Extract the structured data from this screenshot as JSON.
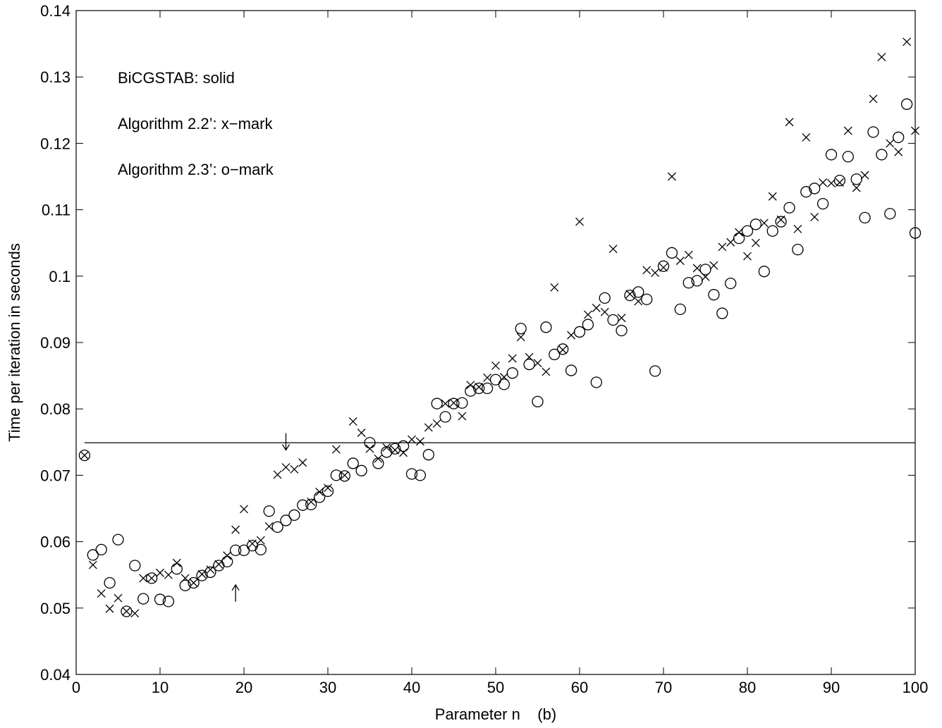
{
  "chart_data": {
    "type": "scatter",
    "title": "",
    "xlabel": "Parameter n    (b)",
    "ylabel": "Time per iteration in seconds",
    "xlim": [
      0,
      100
    ],
    "ylim": [
      0.04,
      0.14
    ],
    "xticks": [
      0,
      10,
      20,
      30,
      40,
      50,
      60,
      70,
      80,
      90,
      100
    ],
    "yticks": [
      0.04,
      0.05,
      0.06,
      0.07,
      0.08,
      0.09,
      0.1,
      0.11,
      0.12,
      0.13,
      0.14
    ],
    "xtick_labels": [
      "0",
      "10",
      "20",
      "30",
      "40",
      "50",
      "60",
      "70",
      "80",
      "90",
      "100"
    ],
    "ytick_labels": [
      "0.04",
      "0.05",
      "0.06",
      "0.07",
      "0.08",
      "0.09",
      "0.1",
      "0.11",
      "0.12",
      "0.13",
      "0.14"
    ],
    "grid": false,
    "annotations": [
      "BiCGSTAB: solid",
      "Algorithm 2.2’: x−mark",
      "Algorithm 2.3’: o−mark"
    ],
    "arrows": [
      {
        "x": 25,
        "y": 0.0738,
        "direction": "down"
      },
      {
        "x": 19,
        "y": 0.0535,
        "direction": "up"
      }
    ],
    "series": [
      {
        "name": "BiCGSTAB",
        "style": "solid",
        "x": [
          1,
          100
        ],
        "y": [
          0.0749,
          0.0749
        ]
      },
      {
        "name": "Algorithm 2.2’",
        "style": "x-mark",
        "x": [
          1,
          2,
          3,
          4,
          5,
          6,
          7,
          8,
          9,
          10,
          11,
          12,
          13,
          14,
          15,
          16,
          17,
          18,
          19,
          20,
          21,
          22,
          23,
          24,
          25,
          26,
          27,
          28,
          29,
          30,
          31,
          32,
          33,
          34,
          35,
          36,
          37,
          38,
          39,
          40,
          41,
          42,
          43,
          44,
          45,
          46,
          47,
          48,
          49,
          50,
          51,
          52,
          53,
          54,
          55,
          56,
          57,
          58,
          59,
          60,
          61,
          62,
          63,
          64,
          65,
          66,
          67,
          68,
          69,
          70,
          71,
          72,
          73,
          74,
          75,
          76,
          77,
          78,
          79,
          80,
          81,
          82,
          83,
          84,
          85,
          86,
          87,
          88,
          89,
          90,
          91,
          92,
          93,
          94,
          95,
          96,
          97,
          98,
          99,
          100
        ],
        "y": [
          0.073,
          0.0565,
          0.0522,
          0.0499,
          0.0515,
          0.0495,
          0.0492,
          0.0545,
          0.0545,
          0.0553,
          0.055,
          0.0568,
          0.0545,
          0.0538,
          0.0551,
          0.0558,
          0.0566,
          0.0579,
          0.0618,
          0.0649,
          0.0597,
          0.0602,
          0.0623,
          0.0701,
          0.0712,
          0.0709,
          0.0719,
          0.066,
          0.0675,
          0.0681,
          0.0739,
          0.07,
          0.0781,
          0.0764,
          0.074,
          0.0725,
          0.0742,
          0.0738,
          0.0734,
          0.0754,
          0.0751,
          0.0772,
          0.0778,
          0.0808,
          0.0809,
          0.0789,
          0.0836,
          0.0833,
          0.0847,
          0.0865,
          0.0848,
          0.0876,
          0.0908,
          0.0878,
          0.0869,
          0.0856,
          0.0983,
          0.0889,
          0.0911,
          0.1082,
          0.0942,
          0.0952,
          0.0946,
          0.1041,
          0.0937,
          0.0973,
          0.0962,
          0.1009,
          0.1005,
          0.1013,
          0.115,
          0.1023,
          0.1032,
          0.1012,
          0.0999,
          0.1016,
          0.1044,
          0.1051,
          0.1066,
          0.103,
          0.105,
          0.108,
          0.112,
          0.1085,
          0.1232,
          0.1071,
          0.1209,
          0.1089,
          0.1141,
          0.114,
          0.1141,
          0.1219,
          0.1133,
          0.1152,
          0.1267,
          0.133,
          0.12,
          0.1187,
          0.1353,
          0.1219
        ]
      },
      {
        "name": "Algorithm 2.3’",
        "style": "o-mark",
        "x": [
          1,
          2,
          3,
          4,
          5,
          6,
          7,
          8,
          9,
          10,
          11,
          12,
          13,
          14,
          15,
          16,
          17,
          18,
          19,
          20,
          21,
          22,
          23,
          24,
          25,
          26,
          27,
          28,
          29,
          30,
          31,
          32,
          33,
          34,
          35,
          36,
          37,
          38,
          39,
          40,
          41,
          42,
          43,
          44,
          45,
          46,
          47,
          48,
          49,
          50,
          51,
          52,
          53,
          54,
          55,
          56,
          57,
          58,
          59,
          60,
          61,
          62,
          63,
          64,
          65,
          66,
          67,
          68,
          69,
          70,
          71,
          72,
          73,
          74,
          75,
          76,
          77,
          78,
          79,
          80,
          81,
          82,
          83,
          84,
          85,
          86,
          87,
          88,
          89,
          90,
          91,
          92,
          93,
          94,
          95,
          96,
          97,
          98,
          99,
          100
        ],
        "y": [
          0.073,
          0.058,
          0.0588,
          0.0538,
          0.0603,
          0.0495,
          0.0564,
          0.0514,
          0.0545,
          0.0513,
          0.051,
          0.0559,
          0.0534,
          0.0538,
          0.0549,
          0.0554,
          0.0564,
          0.057,
          0.0587,
          0.0587,
          0.0594,
          0.0588,
          0.0646,
          0.0622,
          0.0632,
          0.064,
          0.0655,
          0.0656,
          0.0667,
          0.0676,
          0.07,
          0.0699,
          0.0718,
          0.0707,
          0.0749,
          0.0718,
          0.0735,
          0.074,
          0.0744,
          0.0702,
          0.07,
          0.0731,
          0.0808,
          0.0788,
          0.0808,
          0.0809,
          0.0827,
          0.0831,
          0.0831,
          0.0844,
          0.0837,
          0.0854,
          0.0921,
          0.0867,
          0.0811,
          0.0923,
          0.0882,
          0.089,
          0.0858,
          0.0916,
          0.0927,
          0.084,
          0.0967,
          0.0934,
          0.0918,
          0.0971,
          0.0976,
          0.0965,
          0.0857,
          0.1015,
          0.1035,
          0.095,
          0.099,
          0.0993,
          0.101,
          0.0972,
          0.0944,
          0.0989,
          0.1057,
          0.1068,
          0.1078,
          0.1007,
          0.1068,
          0.1082,
          0.1103,
          0.104,
          0.1127,
          0.1132,
          0.1109,
          0.1183,
          0.1144,
          0.118,
          0.1146,
          0.1088,
          0.1217,
          0.1183,
          0.1094,
          0.1209,
          0.1259,
          0.1065
        ]
      }
    ]
  }
}
